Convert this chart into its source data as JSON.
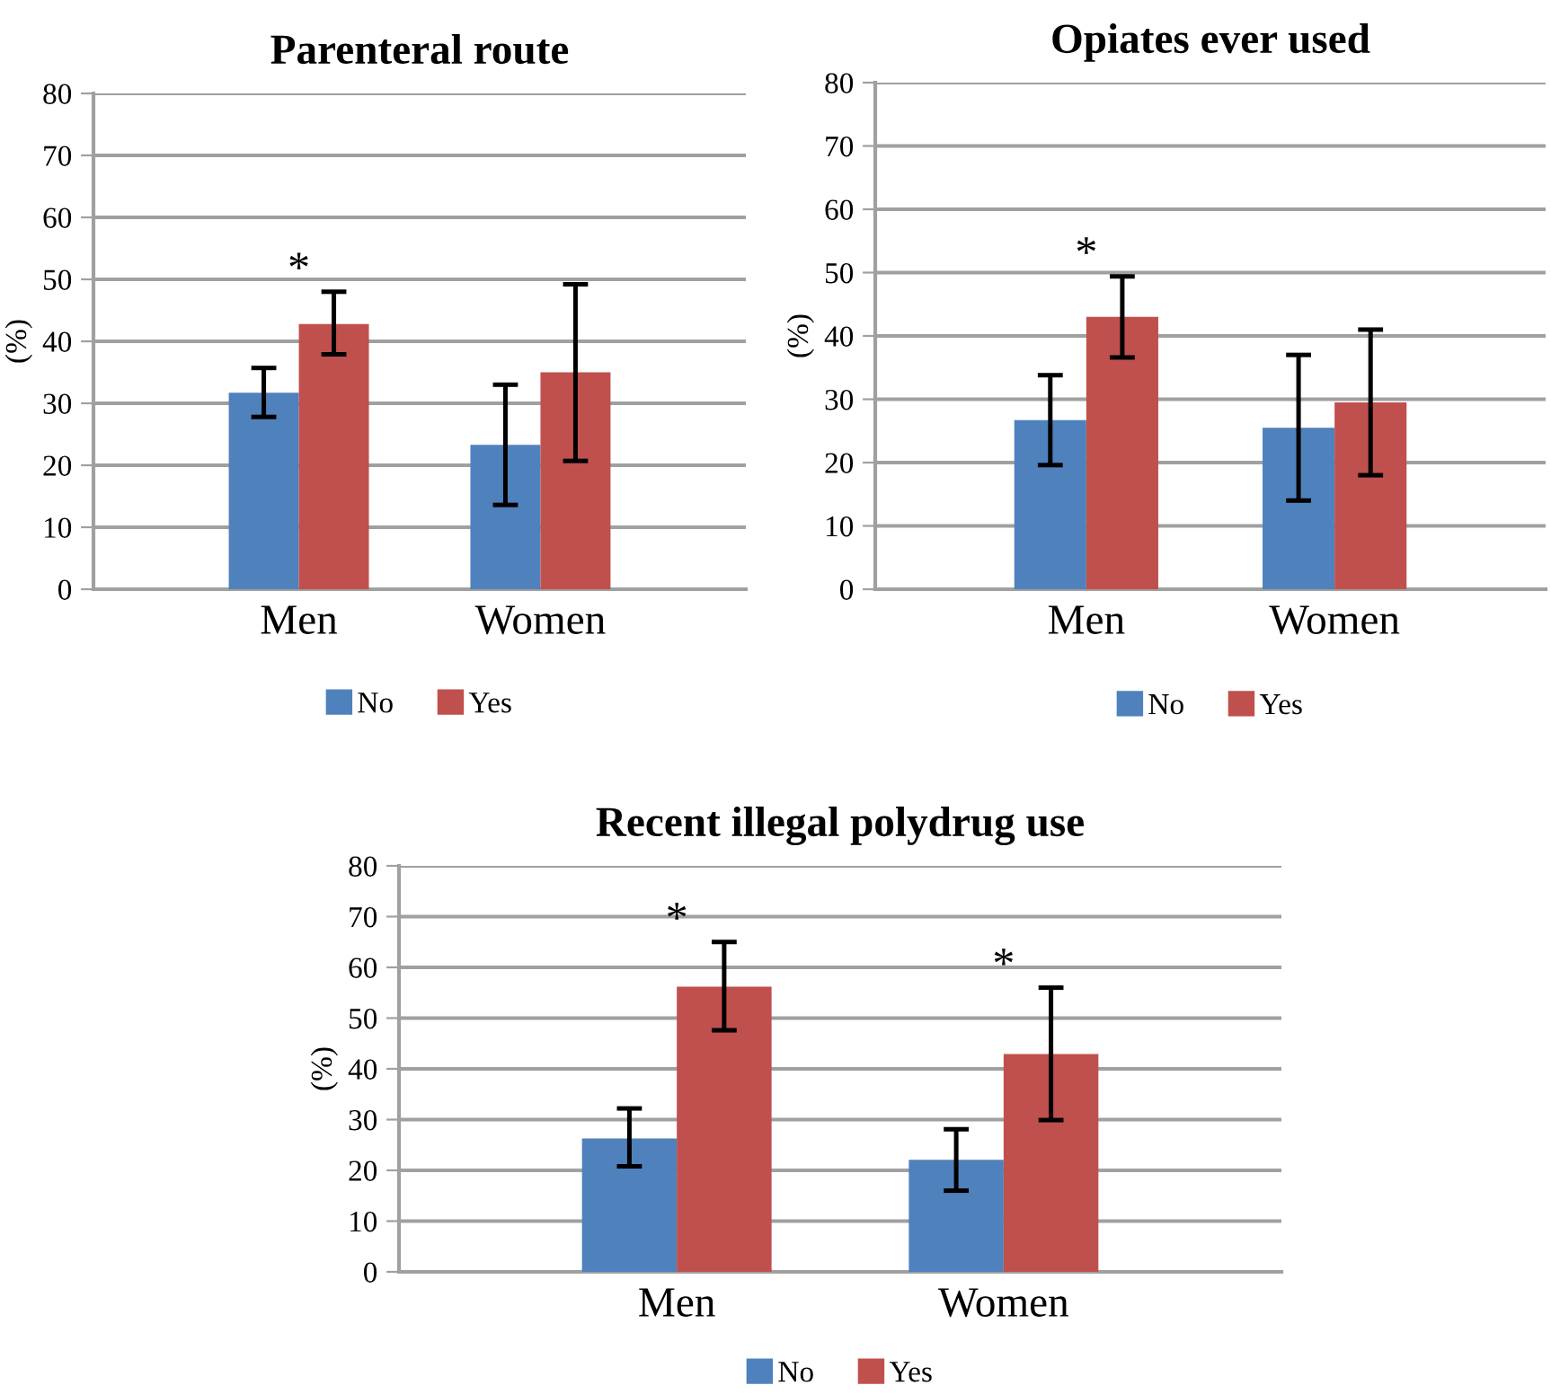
{
  "chart_data": [
    {
      "type": "bar",
      "title": "Parenteral route",
      "ylabel": "(%)",
      "categories": [
        "Men",
        "Women"
      ],
      "series": [
        {
          "name": "No",
          "color": "#4f81bd",
          "values": [
            31.7,
            23.3
          ],
          "errors": [
            [
              27.8,
              35.7
            ],
            [
              13.6,
              33.0
            ]
          ]
        },
        {
          "name": "Yes",
          "color": "#c0504d",
          "values": [
            42.8,
            35.0
          ],
          "errors": [
            [
              37.9,
              48.0
            ],
            [
              20.7,
              49.2
            ]
          ]
        }
      ],
      "annotations": [
        "*"
      ],
      "ylim": [
        0,
        80
      ],
      "yticks": [
        0,
        10,
        20,
        30,
        40,
        50,
        60,
        70,
        80
      ],
      "grid": "y",
      "legend": "bottom"
    },
    {
      "type": "bar",
      "title": "Opiates ever used",
      "ylabel": "(%)",
      "categories": [
        "Men",
        "Women"
      ],
      "series": [
        {
          "name": "No",
          "color": "#4f81bd",
          "values": [
            26.7,
            25.5
          ],
          "errors": [
            [
              19.6,
              33.8
            ],
            [
              14.0,
              37.0
            ]
          ]
        },
        {
          "name": "Yes",
          "color": "#c0504d",
          "values": [
            43.0,
            29.5
          ],
          "errors": [
            [
              36.6,
              49.4
            ],
            [
              18.0,
              41.0
            ]
          ]
        }
      ],
      "annotations": [
        "*"
      ],
      "ylim": [
        0,
        80
      ],
      "yticks": [
        0,
        10,
        20,
        30,
        40,
        50,
        60,
        70,
        80
      ],
      "grid": "y",
      "legend": "bottom"
    },
    {
      "type": "bar",
      "title": "Recent illegal polydrug use",
      "ylabel": "(%)",
      "categories": [
        "Men",
        "Women"
      ],
      "series": [
        {
          "name": "No",
          "color": "#4f81bd",
          "values": [
            26.3,
            22.1
          ],
          "errors": [
            [
              20.8,
              32.2
            ],
            [
              16.0,
              28.1
            ]
          ]
        },
        {
          "name": "Yes",
          "color": "#c0504d",
          "values": [
            56.2,
            42.9
          ],
          "errors": [
            [
              47.6,
              65.0
            ],
            [
              29.9,
              56.0
            ]
          ]
        }
      ],
      "annotations": [
        "*",
        "*"
      ],
      "ylim": [
        0,
        80
      ],
      "yticks": [
        0,
        10,
        20,
        30,
        40,
        50,
        60,
        70,
        80
      ],
      "grid": "y",
      "legend": "bottom"
    }
  ]
}
